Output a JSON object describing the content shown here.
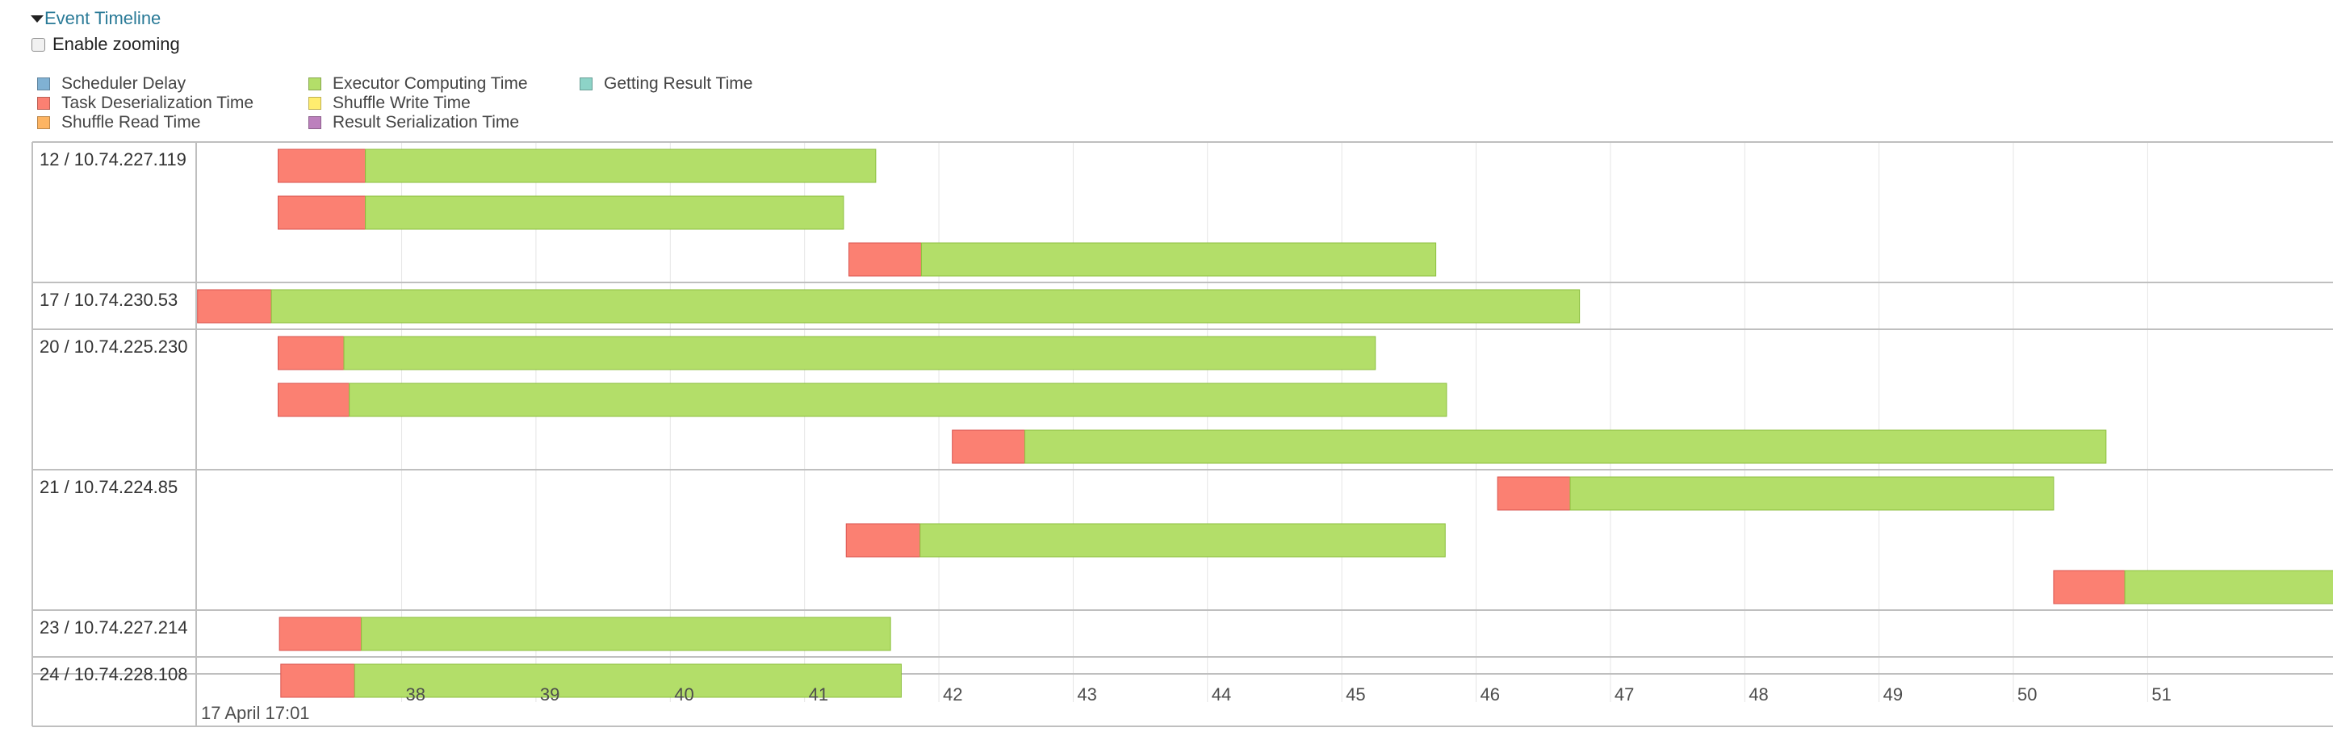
{
  "toggle": {
    "label": "Event Timeline"
  },
  "zoom": {
    "label": "Enable zooming",
    "checked": false
  },
  "legend": [
    {
      "label": "Scheduler Delay",
      "color": "#80b1d3"
    },
    {
      "label": "Task Deserialization Time",
      "color": "#fb8072"
    },
    {
      "label": "Shuffle Read Time",
      "color": "#fdb462"
    },
    {
      "label": "Executor Computing Time",
      "color": "#b3de69"
    },
    {
      "label": "Shuffle Write Time",
      "color": "#ffed6f"
    },
    {
      "label": "Result Serialization Time",
      "color": "#bc80bd"
    },
    {
      "label": "Getting Result Time",
      "color": "#8dd3c7"
    }
  ],
  "timeline": {
    "date_label": "17 April 17:01",
    "x_ticks": [
      "38",
      "39",
      "40",
      "41",
      "42",
      "43",
      "44",
      "45",
      "46",
      "47",
      "48",
      "49",
      "50",
      "51"
    ],
    "x_range": [
      36.47,
      52.38
    ],
    "groups": [
      {
        "name": "12 / 10.74.227.119",
        "tasks": [
          {
            "start": 37.08,
            "deser_end": 37.73,
            "end": 41.53
          },
          {
            "start": 37.08,
            "deser_end": 37.73,
            "end": 41.29
          },
          {
            "start": 41.33,
            "deser_end": 41.87,
            "end": 45.7
          }
        ]
      },
      {
        "name": "17 / 10.74.230.53",
        "tasks": [
          {
            "start": 36.48,
            "deser_end": 37.03,
            "end": 46.77
          }
        ]
      },
      {
        "name": "20 / 10.74.225.230",
        "tasks": [
          {
            "start": 37.08,
            "deser_end": 37.57,
            "end": 45.25
          },
          {
            "start": 37.08,
            "deser_end": 37.61,
            "end": 45.78
          },
          {
            "start": 42.1,
            "deser_end": 42.64,
            "end": 50.69
          }
        ]
      },
      {
        "name": "21 / 10.74.224.85",
        "tasks": [
          {
            "start": 46.16,
            "deser_end": 46.7,
            "end": 50.3
          },
          {
            "start": 41.31,
            "deser_end": 41.86,
            "end": 45.77
          },
          {
            "start": 50.3,
            "deser_end": 50.83,
            "end": 52.5
          }
        ]
      },
      {
        "name": "23 / 10.74.227.214",
        "tasks": [
          {
            "start": 37.09,
            "deser_end": 37.7,
            "end": 41.64
          }
        ]
      },
      {
        "name": "24 / 10.74.228.108",
        "tasks": [
          {
            "start": 37.1,
            "deser_end": 37.65,
            "end": 41.72
          }
        ]
      }
    ]
  }
}
